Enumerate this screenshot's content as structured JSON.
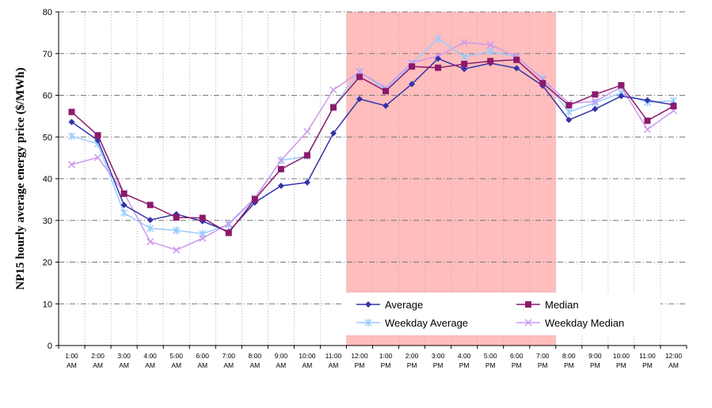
{
  "chart_data": {
    "type": "line",
    "title": "",
    "xlabel": "",
    "ylabel": "NP15 hourly average energy price ($/MWh)",
    "ylim": [
      0,
      80
    ],
    "yticks": [
      0,
      10,
      20,
      30,
      40,
      50,
      60,
      70,
      80
    ],
    "grid": true,
    "legend_position": "bottom-right",
    "categories": [
      [
        "1:00",
        "AM"
      ],
      [
        "2:00",
        "AM"
      ],
      [
        "3:00",
        "AM"
      ],
      [
        "4:00",
        "AM"
      ],
      [
        "5:00",
        "AM"
      ],
      [
        "6:00",
        "AM"
      ],
      [
        "7:00",
        "AM"
      ],
      [
        "8:00",
        "AM"
      ],
      [
        "9:00",
        "AM"
      ],
      [
        "10:00",
        "AM"
      ],
      [
        "11:00",
        "AM"
      ],
      [
        "12:00",
        "PM"
      ],
      [
        "1:00",
        "PM"
      ],
      [
        "2:00",
        "PM"
      ],
      [
        "3:00",
        "PM"
      ],
      [
        "4:00",
        "PM"
      ],
      [
        "5:00",
        "PM"
      ],
      [
        "6:00",
        "PM"
      ],
      [
        "7:00",
        "PM"
      ],
      [
        "8:00",
        "PM"
      ],
      [
        "9:00",
        "PM"
      ],
      [
        "10:00",
        "PM"
      ],
      [
        "11:00",
        "PM"
      ],
      [
        "12:00",
        "AM"
      ]
    ],
    "highlight": {
      "from_index": 11,
      "to_index": 18,
      "color": "#ffbdbd"
    },
    "series": [
      {
        "name": "Average",
        "color": "#3333aa",
        "marker": "diamond",
        "values": [
          53.6,
          49.2,
          33.7,
          30.1,
          31.5,
          29.8,
          27.3,
          34.3,
          38.3,
          39.1,
          50.9,
          59.1,
          57.5,
          62.7,
          68.8,
          66.3,
          67.7,
          66.5,
          62.3,
          54.1,
          56.7,
          59.8,
          58.8,
          57.7
        ]
      },
      {
        "name": "Median",
        "color": "#8b1a6b",
        "marker": "square",
        "values": [
          56.0,
          50.4,
          36.4,
          33.7,
          30.7,
          30.6,
          27.0,
          35.1,
          42.3,
          45.6,
          57.1,
          64.4,
          61.0,
          66.9,
          66.6,
          67.5,
          68.2,
          68.5,
          62.9,
          57.6,
          60.2,
          62.4,
          53.9,
          57.4
        ]
      },
      {
        "name": "Weekday Average",
        "color": "#99ccff",
        "marker": "star",
        "values": [
          50.2,
          48.4,
          31.8,
          28.1,
          27.6,
          26.8,
          29.0,
          35.2,
          44.4,
          45.4,
          57.2,
          65.7,
          61.3,
          67.5,
          73.6,
          69.2,
          70.5,
          69.2,
          64.0,
          56.0,
          58.2,
          60.6,
          58.3,
          58.7
        ]
      },
      {
        "name": "Weekday Median",
        "color": "#cc99ee",
        "marker": "x",
        "values": [
          43.4,
          45.1,
          36.6,
          24.9,
          22.9,
          25.7,
          29.2,
          35.4,
          44.4,
          51.3,
          61.3,
          65.6,
          61.8,
          67.8,
          69.4,
          72.7,
          72.1,
          69.3,
          63.8,
          58.1,
          58.5,
          62.0,
          51.8,
          56.3
        ]
      }
    ]
  }
}
